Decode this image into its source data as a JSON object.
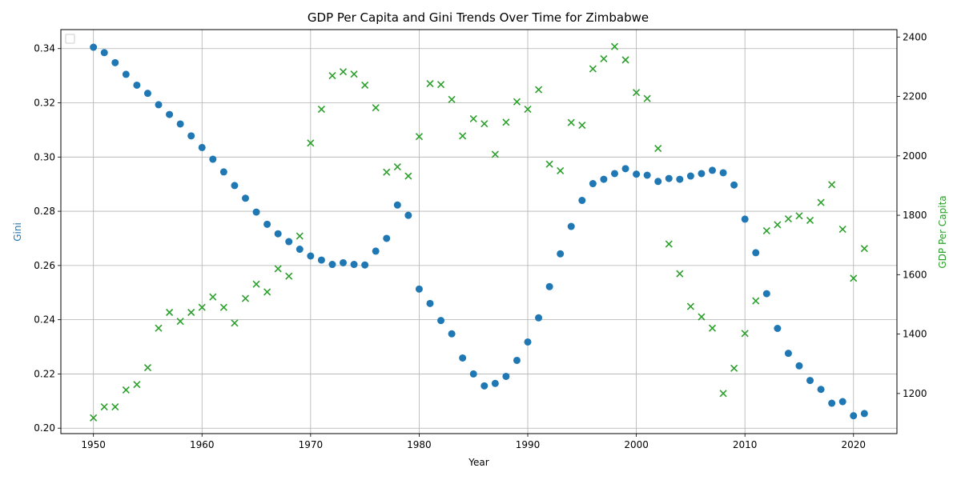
{
  "chart_data": {
    "type": "scatter",
    "title": "GDP Per Capita and Gini Trends Over Time for Zimbabwe",
    "xlabel": "Year",
    "ylabel_left": "Gini",
    "ylabel_right": "GDP Per Capita",
    "xlim": [
      1947,
      2024
    ],
    "ylim_left": [
      0.198,
      0.347
    ],
    "ylim_right": [
      1065,
      2425
    ],
    "x_ticks": [
      1950,
      1960,
      1970,
      1980,
      1990,
      2000,
      2010,
      2020
    ],
    "y_left_ticks": [
      0.2,
      0.22,
      0.24,
      0.26,
      0.28,
      0.3,
      0.32,
      0.34
    ],
    "y_left_tick_labels": [
      "0.20",
      "0.22",
      "0.24",
      "0.26",
      "0.28",
      "0.30",
      "0.32",
      "0.34"
    ],
    "y_right_ticks": [
      1200,
      1400,
      1600,
      1800,
      2000,
      2200,
      2400
    ],
    "grid": true,
    "legend": "top-left (empty)",
    "colors": {
      "gini": "#1f77b4",
      "gdp": "#2ca02c"
    },
    "years": [
      1950,
      1951,
      1952,
      1953,
      1954,
      1955,
      1956,
      1957,
      1958,
      1959,
      1960,
      1961,
      1962,
      1963,
      1964,
      1965,
      1966,
      1967,
      1968,
      1969,
      1970,
      1971,
      1972,
      1973,
      1974,
      1975,
      1976,
      1977,
      1978,
      1979,
      1980,
      1981,
      1982,
      1983,
      1984,
      1985,
      1986,
      1987,
      1988,
      1989,
      1990,
      1991,
      1992,
      1993,
      1994,
      1995,
      1996,
      1997,
      1998,
      1999,
      2000,
      2001,
      2002,
      2003,
      2004,
      2005,
      2006,
      2007,
      2008,
      2009,
      2010,
      2011,
      2012,
      2013,
      2014,
      2015,
      2016,
      2017,
      2018,
      2019,
      2020,
      2021
    ],
    "series": [
      {
        "name": "Gini",
        "axis": "left",
        "marker": "circle",
        "values": [
          0.3405,
          0.3385,
          0.3348,
          0.3305,
          0.3265,
          0.3235,
          0.3193,
          0.3157,
          0.3122,
          0.3078,
          0.3035,
          0.2992,
          0.2945,
          0.2895,
          0.2848,
          0.2797,
          0.2752,
          0.2717,
          0.2688,
          0.266,
          0.2635,
          0.262,
          0.2604,
          0.261,
          0.2604,
          0.2602,
          0.2653,
          0.27,
          0.2823,
          0.2785,
          0.2513,
          0.246,
          0.2397,
          0.2348,
          0.2259,
          0.22,
          0.2156,
          0.2165,
          0.2191,
          0.225,
          0.2318,
          0.2407,
          0.2522,
          0.2643,
          0.2744,
          0.284,
          0.2902,
          0.2918,
          0.2939,
          0.2957,
          0.2937,
          0.2933,
          0.291,
          0.2921,
          0.2918,
          0.293,
          0.2939,
          0.2951,
          0.2942,
          0.2897,
          0.2771,
          0.2647,
          0.2496,
          0.2368,
          0.2276,
          0.223,
          0.2176,
          0.2143,
          0.2092,
          0.2098,
          0.2046,
          0.2054
        ]
      },
      {
        "name": "GDP Per Capita",
        "axis": "right",
        "marker": "x",
        "values": [
          1118,
          1155,
          1155,
          1212,
          1230,
          1287,
          1420,
          1473,
          1443,
          1473,
          1490,
          1525,
          1490,
          1437,
          1520,
          1568,
          1542,
          1620,
          1595,
          1730,
          2043,
          2157,
          2270,
          2283,
          2275,
          2238,
          2162,
          1945,
          1963,
          1932,
          2065,
          2243,
          2240,
          2190,
          2067,
          2125,
          2108,
          2005,
          2113,
          2182,
          2157,
          2223,
          1972,
          1950,
          2112,
          2103,
          2293,
          2327,
          2368,
          2323,
          2213,
          2193,
          2025,
          1703,
          1603,
          1493,
          1458,
          1420,
          1200,
          1285,
          1402,
          1512,
          1748,
          1768,
          1788,
          1798,
          1783,
          1843,
          1903,
          1753,
          1588,
          1688
        ]
      }
    ]
  }
}
